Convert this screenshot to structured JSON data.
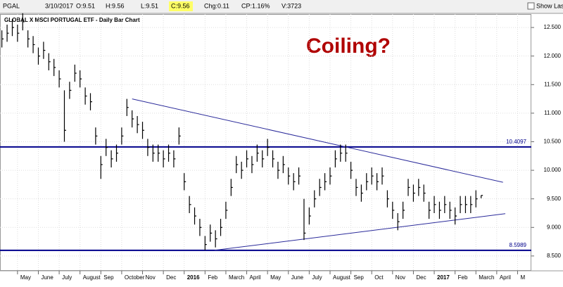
{
  "header": {
    "symbol": "PGAL",
    "date": "3/10/2017",
    "open": "O:9.51",
    "high": "H:9.56",
    "low": "L:9.51",
    "close": "C:9.56",
    "change": "Chg:0.11",
    "change_pct": "CP:1.16%",
    "volume": "V:3723",
    "show_last": "Show Last"
  },
  "chart_data": {
    "type": "ohlc",
    "title": "GLOBAL X MSCI PORTUGAL ETF - Daily Bar Chart",
    "color": "#000000",
    "annotation": "Coiling?",
    "annotation_color": "#b00000",
    "xlim": [
      -0.84,
      24.66
    ],
    "ylim": [
      8.24,
      12.735
    ],
    "grid": true,
    "xticks": [
      {
        "value": 0,
        "label": "May"
      },
      {
        "value": 1,
        "label": "June"
      },
      {
        "value": 2,
        "label": "July"
      },
      {
        "value": 3,
        "label": "August"
      },
      {
        "value": 4,
        "label": "Sep"
      },
      {
        "value": 5,
        "label": "October"
      },
      {
        "value": 6,
        "label": "Nov"
      },
      {
        "value": 7,
        "label": "Dec"
      },
      {
        "value": 8,
        "label": "2016"
      },
      {
        "value": 9,
        "label": "Feb"
      },
      {
        "value": 10,
        "label": "March"
      },
      {
        "value": 11,
        "label": "April"
      },
      {
        "value": 12,
        "label": "May"
      },
      {
        "value": 13,
        "label": "June"
      },
      {
        "value": 14,
        "label": "July"
      },
      {
        "value": 15,
        "label": "August"
      },
      {
        "value": 16,
        "label": "Sep"
      },
      {
        "value": 17,
        "label": "Oct"
      },
      {
        "value": 18,
        "label": "Nov"
      },
      {
        "value": 19,
        "label": "Dec"
      },
      {
        "value": 20,
        "label": "2017"
      },
      {
        "value": 21,
        "label": "Feb"
      },
      {
        "value": 22,
        "label": "March"
      },
      {
        "value": 23,
        "label": "April"
      },
      {
        "value": 24,
        "label": "M"
      }
    ],
    "yticks": [
      {
        "value": 8.5,
        "label": "8.500"
      },
      {
        "value": 9,
        "label": "9.000"
      },
      {
        "value": 9.5,
        "label": "9.500"
      },
      {
        "value": 10,
        "label": "10.000"
      },
      {
        "value": 10.5,
        "label": "10.500"
      },
      {
        "value": 11,
        "label": "11.000"
      },
      {
        "value": 11.5,
        "label": "11.500"
      },
      {
        "value": 12,
        "label": "12.000"
      },
      {
        "value": 12.5,
        "label": "12.500"
      }
    ],
    "hlines": [
      {
        "value": 10.4097,
        "color": "#00008b"
      },
      {
        "value": 8.5989,
        "color": "#00008b"
      }
    ],
    "trendlines": [
      {
        "x": [
          5.5,
          23.3
        ],
        "y": [
          11.25,
          9.79
        ],
        "color": "#2a2a9a"
      },
      {
        "x": [
          9.46,
          23.41
        ],
        "y": [
          8.6,
          9.24
        ],
        "color": "#2a2a9a"
      }
    ],
    "x": [
      -0.75,
      -0.5,
      -0.25,
      0,
      0.25,
      0.5,
      0.75,
      1,
      1.25,
      1.5,
      1.75,
      2,
      2.25,
      2.5,
      2.75,
      3,
      3.25,
      3.5,
      3.75,
      4,
      4.25,
      4.5,
      4.75,
      5,
      5.25,
      5.5,
      5.75,
      6,
      6.25,
      6.5,
      6.75,
      7,
      7.25,
      7.5,
      7.75,
      8,
      8.25,
      8.5,
      8.75,
      9,
      9.25,
      9.5,
      9.75,
      10,
      10.25,
      10.5,
      10.75,
      11,
      11.25,
      11.5,
      11.75,
      12,
      12.25,
      12.5,
      12.75,
      13,
      13.25,
      13.5,
      13.75,
      14,
      14.25,
      14.5,
      14.75,
      15,
      15.25,
      15.5,
      15.75,
      16,
      16.25,
      16.5,
      16.75,
      17,
      17.25,
      17.5,
      17.75,
      18,
      18.25,
      18.5,
      18.75,
      19,
      19.25,
      19.5,
      19.75,
      20,
      20.25,
      20.5,
      20.75,
      21,
      21.25,
      21.5,
      21.75,
      22,
      22.25
    ],
    "high": [
      12.45,
      12.55,
      12.65,
      12.55,
      12.75,
      12.45,
      12.35,
      12.15,
      12.25,
      12.05,
      11.95,
      11.75,
      11.4,
      11.55,
      11.85,
      11.75,
      11.45,
      11.35,
      10.75,
      10.25,
      10.55,
      10.35,
      10.45,
      10.75,
      11.25,
      11.05,
      10.95,
      10.85,
      10.55,
      10.45,
      10.45,
      10.35,
      10.45,
      10.35,
      10.75,
      9.95,
      9.55,
      9.35,
      9.15,
      8.85,
      9.05,
      8.95,
      9.15,
      9.45,
      9.85,
      10.25,
      10.15,
      10.35,
      10.25,
      10.45,
      10.35,
      10.55,
      10.35,
      10.15,
      10.25,
      10.05,
      9.95,
      10.05,
      9.5,
      9.35,
      9.65,
      9.85,
      9.95,
      10.05,
      10.35,
      10.45,
      10.45,
      10.15,
      9.85,
      9.75,
      9.95,
      10.05,
      9.95,
      10.05,
      9.65,
      9.45,
      9.25,
      9.45,
      9.85,
      9.75,
      9.85,
      9.75,
      9.45,
      9.55,
      9.45,
      9.55,
      9.45,
      9.35,
      9.55,
      9.55,
      9.55,
      9.65,
      9.56
    ],
    "low": [
      12.15,
      12.25,
      12.35,
      12.25,
      12.45,
      12.15,
      12.05,
      11.85,
      11.95,
      11.75,
      11.65,
      11.45,
      10.5,
      11.25,
      11.55,
      11.45,
      11.15,
      11.05,
      10.45,
      9.85,
      10.25,
      10.05,
      10.15,
      10.45,
      10.95,
      10.75,
      10.65,
      10.55,
      10.25,
      10.15,
      10.15,
      10.05,
      10.15,
      10.05,
      10.45,
      9.65,
      9.25,
      9.05,
      8.85,
      8.6,
      8.75,
      8.65,
      8.85,
      9.15,
      9.55,
      9.95,
      9.85,
      10.05,
      9.95,
      10.15,
      10.05,
      10.25,
      10.05,
      9.85,
      9.95,
      9.75,
      9.65,
      9.75,
      8.78,
      9.05,
      9.35,
      9.55,
      9.65,
      9.75,
      10.05,
      10.15,
      10.15,
      9.85,
      9.55,
      9.45,
      9.65,
      9.75,
      9.65,
      9.75,
      9.35,
      9.15,
      8.95,
      9.15,
      9.55,
      9.45,
      9.55,
      9.45,
      9.15,
      9.25,
      9.15,
      9.25,
      9.15,
      9.05,
      9.25,
      9.25,
      9.25,
      9.35,
      9.51
    ],
    "close": [
      12.3,
      12.4,
      12.5,
      12.4,
      12.6,
      12.3,
      12.2,
      12.0,
      12.1,
      11.9,
      11.8,
      11.6,
      10.7,
      11.4,
      11.7,
      11.6,
      11.3,
      11.2,
      10.6,
      10.1,
      10.4,
      10.2,
      10.3,
      10.6,
      11.1,
      10.9,
      10.8,
      10.7,
      10.4,
      10.3,
      10.3,
      10.2,
      10.3,
      10.2,
      10.6,
      9.8,
      9.4,
      9.2,
      9.0,
      8.7,
      8.9,
      8.8,
      9.0,
      9.3,
      9.7,
      10.1,
      10.0,
      10.2,
      10.1,
      10.3,
      10.2,
      10.4,
      10.2,
      10.0,
      10.1,
      9.9,
      9.8,
      9.9,
      8.9,
      9.2,
      9.5,
      9.7,
      9.8,
      9.9,
      10.2,
      10.3,
      10.3,
      10.0,
      9.7,
      9.6,
      9.8,
      9.9,
      9.8,
      9.9,
      9.5,
      9.3,
      9.1,
      9.3,
      9.7,
      9.6,
      9.7,
      9.6,
      9.3,
      9.4,
      9.3,
      9.4,
      9.3,
      9.2,
      9.4,
      9.4,
      9.4,
      9.5,
      9.56
    ]
  }
}
